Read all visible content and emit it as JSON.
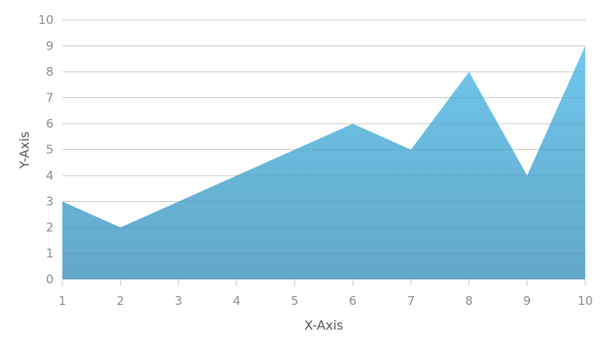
{
  "chart_data": {
    "type": "area",
    "title": "",
    "xlabel": "X-Axis",
    "ylabel": "Y-Axis",
    "x": [
      1,
      2,
      3,
      4,
      5,
      6,
      7,
      8,
      9,
      10
    ],
    "series": [
      {
        "values": [
          3,
          2,
          3,
          4,
          5,
          6,
          5,
          8,
          4,
          9
        ]
      }
    ],
    "xlim": [
      1,
      10
    ],
    "ylim": [
      0,
      10
    ],
    "yticks": [
      0,
      1,
      2,
      3,
      4,
      5,
      6,
      7,
      8,
      9,
      10
    ],
    "xticks": [
      1,
      2,
      3,
      4,
      5,
      6,
      7,
      8,
      9,
      10
    ],
    "grid": true,
    "legend": "none",
    "colors": {
      "fill_top": "#70c7ec",
      "fill_bottom": "#62a7c7",
      "grid": "#d9d9d9",
      "tick_text": "#8a8a8a",
      "axis_title": "#555555"
    }
  }
}
